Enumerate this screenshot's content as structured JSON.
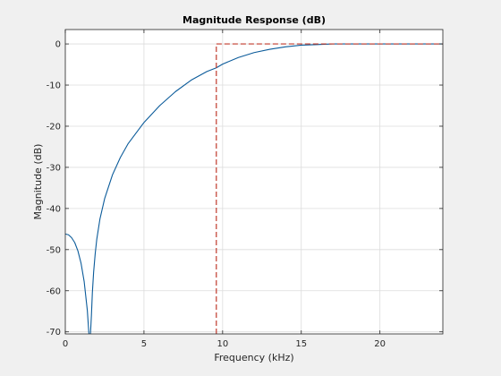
{
  "chart_data": {
    "type": "line",
    "title": "Magnitude Response (dB)",
    "xlabel": "Frequency (kHz)",
    "ylabel": "Magnitude (dB)",
    "xlim": [
      0,
      24
    ],
    "ylim": [
      -70.5,
      3.5
    ],
    "xticks": [
      0,
      5,
      10,
      15,
      20
    ],
    "yticks": [
      0,
      -10,
      -20,
      -30,
      -40,
      -50,
      -60,
      -70
    ],
    "grid": true,
    "colors": {
      "response": "#0b5b9a",
      "mask": "#c0392b",
      "axes_bg": "#ffffff",
      "figure_bg": "#f0f0f0",
      "grid": "#dcdcdc"
    },
    "series": [
      {
        "style": "solid",
        "x": [
          0,
          0.2,
          0.4,
          0.6,
          0.8,
          1.0,
          1.2,
          1.4,
          1.5,
          1.54,
          1.6,
          1.66,
          1.72,
          1.8,
          1.9,
          2.0,
          2.2,
          2.5,
          3.0,
          3.5,
          4.0,
          5.0,
          6.0,
          7.0,
          8.0,
          9.0,
          9.6,
          10.0,
          11.0,
          12.0,
          13.0,
          14.0,
          15.0,
          16.0,
          17.0,
          18.0,
          20.0,
          22.0,
          24.0
        ],
        "y": [
          -46.2,
          -46.4,
          -47.1,
          -48.3,
          -50.3,
          -53.3,
          -57.8,
          -64.8,
          -70.5,
          -70.5,
          -70.5,
          -66.0,
          -60.5,
          -55.5,
          -51.0,
          -47.5,
          -42.6,
          -37.6,
          -31.8,
          -27.6,
          -24.2,
          -19.1,
          -15.0,
          -11.6,
          -8.8,
          -6.7,
          -5.8,
          -4.9,
          -3.3,
          -2.1,
          -1.3,
          -0.7,
          -0.3,
          -0.15,
          0,
          0,
          0,
          0,
          0
        ]
      },
      {
        "style": "dashed",
        "x": [
          9.6,
          9.6,
          24
        ],
        "y": [
          -70.5,
          0,
          0
        ]
      }
    ]
  }
}
